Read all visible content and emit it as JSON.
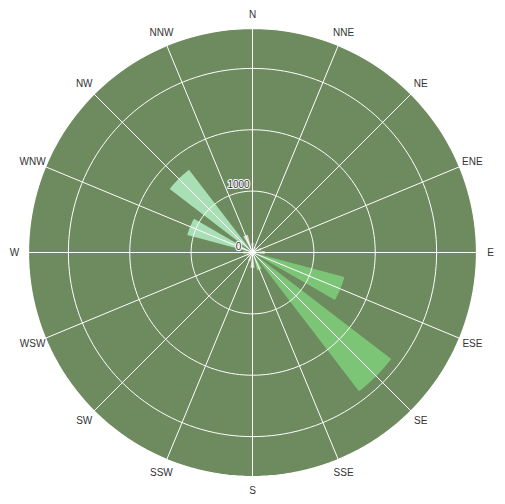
{
  "chart_data": {
    "type": "wind_rose",
    "categories": [
      "N",
      "NNE",
      "NE",
      "ENE",
      "E",
      "ESE",
      "SE",
      "SSE",
      "S",
      "SSW",
      "SW",
      "WSW",
      "W",
      "WNW",
      "NW",
      "NNW"
    ],
    "values": [
      150,
      100,
      100,
      150,
      200,
      1550,
      2850,
      300,
      250,
      150,
      100,
      100,
      150,
      1100,
      1700,
      300
    ],
    "colors": [
      "#d4d4cf",
      "#d4d4cf",
      "#d4d4cf",
      "#d4d4cf",
      "#d4d4cf",
      "#7cc576",
      "#7cc576",
      "#8fcf8a",
      "#d4d4cf",
      "#d4d4cf",
      "#d4d4cf",
      "#d4d4cf",
      "#d4d4cf",
      "#a8dfb4",
      "#a8dfb4",
      "#d4d4cf"
    ],
    "ylim": [
      0,
      3650
    ],
    "yticks": [
      0,
      1000
    ],
    "grid": true
  }
}
